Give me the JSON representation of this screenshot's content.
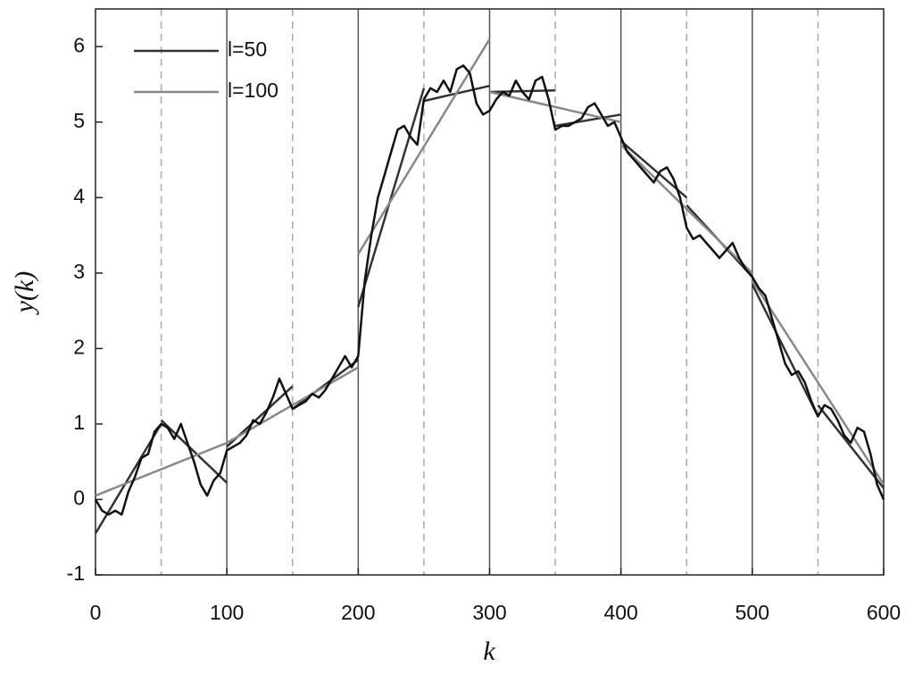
{
  "chart_data": {
    "type": "line",
    "xlabel": "k",
    "ylabel": "y(k)",
    "xlim": [
      0,
      600
    ],
    "ylim": [
      -1,
      6.5
    ],
    "xticks": [
      0,
      100,
      200,
      300,
      400,
      500,
      600
    ],
    "yticks": [
      -1,
      0,
      1,
      2,
      3,
      4,
      5,
      6
    ],
    "x_grid": [
      100,
      200,
      300,
      400,
      500
    ],
    "minor_x_grid": [
      50,
      150,
      250,
      350,
      450,
      550
    ],
    "legend": "upper left",
    "profile": {
      "color": "#111111",
      "x": [
        0,
        5,
        10,
        15,
        20,
        25,
        30,
        35,
        40,
        45,
        50,
        55,
        60,
        65,
        70,
        75,
        80,
        85,
        90,
        95,
        100,
        105,
        110,
        115,
        120,
        125,
        130,
        135,
        140,
        145,
        150,
        155,
        160,
        165,
        170,
        175,
        180,
        185,
        190,
        195,
        200,
        205,
        210,
        215,
        220,
        225,
        230,
        235,
        240,
        245,
        250,
        255,
        260,
        265,
        270,
        275,
        280,
        285,
        290,
        295,
        300,
        305,
        310,
        315,
        320,
        325,
        330,
        335,
        340,
        345,
        350,
        355,
        360,
        365,
        370,
        375,
        380,
        385,
        390,
        395,
        400,
        405,
        410,
        415,
        420,
        425,
        430,
        435,
        440,
        445,
        450,
        455,
        460,
        465,
        470,
        475,
        480,
        485,
        490,
        495,
        500,
        505,
        510,
        515,
        520,
        525,
        530,
        535,
        540,
        545,
        550,
        555,
        560,
        565,
        570,
        575,
        580,
        585,
        590,
        595,
        600
      ],
      "values": [
        0.0,
        -0.15,
        -0.2,
        -0.15,
        -0.2,
        0.1,
        0.3,
        0.55,
        0.6,
        0.9,
        1.0,
        0.95,
        0.8,
        1.0,
        0.75,
        0.5,
        0.2,
        0.05,
        0.25,
        0.35,
        0.65,
        0.7,
        0.75,
        0.85,
        1.05,
        1.0,
        1.15,
        1.35,
        1.6,
        1.4,
        1.2,
        1.25,
        1.3,
        1.4,
        1.35,
        1.45,
        1.6,
        1.75,
        1.9,
        1.75,
        1.9,
        2.9,
        3.5,
        4.0,
        4.3,
        4.6,
        4.9,
        4.95,
        4.8,
        4.7,
        5.3,
        5.45,
        5.4,
        5.55,
        5.4,
        5.7,
        5.75,
        5.65,
        5.25,
        5.1,
        5.15,
        5.3,
        5.4,
        5.35,
        5.55,
        5.4,
        5.3,
        5.55,
        5.6,
        5.3,
        4.9,
        4.95,
        4.95,
        5.0,
        5.05,
        5.2,
        5.25,
        5.1,
        4.95,
        5.0,
        4.8,
        4.6,
        4.5,
        4.4,
        4.3,
        4.2,
        4.35,
        4.4,
        4.25,
        4.0,
        3.6,
        3.45,
        3.5,
        3.4,
        3.3,
        3.2,
        3.3,
        3.4,
        3.2,
        3.05,
        2.95,
        2.8,
        2.7,
        2.4,
        2.1,
        1.8,
        1.65,
        1.7,
        1.55,
        1.3,
        1.1,
        1.25,
        1.2,
        1.05,
        0.85,
        0.75,
        0.95,
        0.9,
        0.6,
        0.2,
        0.0
      ]
    },
    "series": [
      {
        "name": "l=50",
        "color": "#333333",
        "segments": [
          {
            "x": [
              0,
              50
            ],
            "values": [
              -0.45,
              1.0
            ]
          },
          {
            "x": [
              50,
              100
            ],
            "values": [
              1.05,
              0.22
            ]
          },
          {
            "x": [
              100,
              150
            ],
            "values": [
              0.7,
              1.5
            ]
          },
          {
            "x": [
              150,
              200
            ],
            "values": [
              1.2,
              1.85
            ]
          },
          {
            "x": [
              200,
              250
            ],
            "values": [
              2.55,
              5.45
            ]
          },
          {
            "x": [
              250,
              300
            ],
            "values": [
              5.28,
              5.48
            ]
          },
          {
            "x": [
              300,
              350
            ],
            "values": [
              5.4,
              5.42
            ]
          },
          {
            "x": [
              350,
              400
            ],
            "values": [
              4.95,
              5.1
            ]
          },
          {
            "x": [
              400,
              450
            ],
            "values": [
              4.75,
              4.0
            ]
          },
          {
            "x": [
              450,
              500
            ],
            "values": [
              3.9,
              2.95
            ]
          },
          {
            "x": [
              500,
              550
            ],
            "values": [
              2.85,
              1.1
            ]
          },
          {
            "x": [
              550,
              600
            ],
            "values": [
              1.25,
              0.15
            ]
          }
        ]
      },
      {
        "name": "l=100",
        "color": "#888888",
        "segments": [
          {
            "x": [
              0,
              100
            ],
            "values": [
              0.05,
              0.75
            ]
          },
          {
            "x": [
              100,
              200
            ],
            "values": [
              0.75,
              1.75
            ]
          },
          {
            "x": [
              200,
              300
            ],
            "values": [
              3.25,
              6.1
            ]
          },
          {
            "x": [
              300,
              400
            ],
            "values": [
              5.4,
              5.0
            ]
          },
          {
            "x": [
              400,
              500
            ],
            "values": [
              4.7,
              3.0
            ]
          },
          {
            "x": [
              500,
              600
            ],
            "values": [
              2.9,
              0.2
            ]
          }
        ]
      }
    ]
  }
}
